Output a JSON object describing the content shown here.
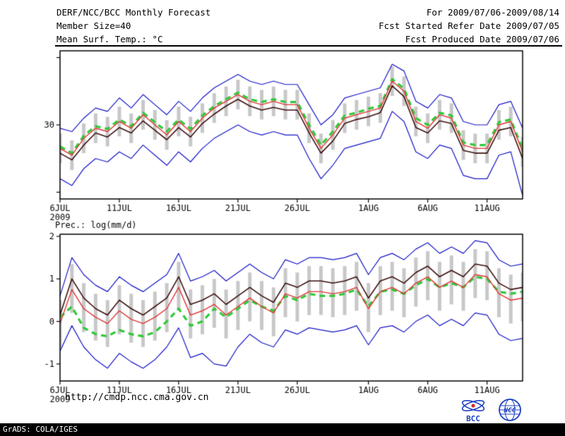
{
  "header": {
    "left_lines": [
      "DERF/NCC/BCC Monthly Forecast",
      "Member Size=40",
      "Mean Surf. Temp.: °C"
    ],
    "right_lines": [
      "For 2009/07/06-2009/08/14",
      "Fcst Started Refer Date 2009/07/05",
      "Fcst Produced Date 2009/07/06"
    ]
  },
  "footer": {
    "credit": "GrADS: COLA/IGES",
    "url": "http://cmdp.ncc.cma.gov.cn"
  },
  "logos": {
    "bcc_label": "BCC",
    "ncc_label": "NCC"
  },
  "colors": {
    "envelope": "#1414c8",
    "ensemble_mean": "#e03232",
    "control": "#3c0f0f",
    "observation": "#30c838",
    "spread_bar": "#c8c8c8",
    "axis": "#000000"
  },
  "chart_data": [
    {
      "type": "line",
      "panel": "surface-temperature",
      "panel_label": "",
      "ylabel": "Mean Surf. Temp.: °C",
      "ylim": [
        19,
        41
      ],
      "yticks": [
        {
          "value": 20,
          "label": ""
        },
        {
          "value": 30,
          "label": "30"
        },
        {
          "value": 40,
          "label": ""
        }
      ],
      "x_count": 40,
      "x_ticks": [
        {
          "index": 0,
          "label": "6JUL",
          "sublabel": "2009"
        },
        {
          "index": 5,
          "label": "11JUL"
        },
        {
          "index": 10,
          "label": "16JUL"
        },
        {
          "index": 15,
          "label": "21JUL"
        },
        {
          "index": 20,
          "label": "26JUL"
        },
        {
          "index": 26,
          "label": "1AUG"
        },
        {
          "index": 31,
          "label": "6AUG"
        },
        {
          "index": 36,
          "label": "11AUG"
        }
      ],
      "bars": {
        "name": "member-spread",
        "color": "#c8c8c8",
        "top": [
          28.7,
          27.7,
          30.2,
          31.7,
          31.2,
          32.7,
          31.7,
          33.7,
          32.2,
          30.7,
          32.7,
          31.2,
          33.2,
          34.7,
          35.7,
          36.7,
          35.7,
          35.2,
          35.7,
          35.2,
          35.2,
          31.7,
          28.7,
          30.7,
          33.2,
          33.7,
          34.2,
          34.7,
          38.7,
          37.2,
          32.7,
          31.7,
          33.7,
          33.2,
          29.2,
          28.7,
          28.7,
          32.2,
          32.7,
          28.2
        ],
        "bottom": [
          24.3,
          23.3,
          25.8,
          27.3,
          26.8,
          28.3,
          27.3,
          29.3,
          27.8,
          26.3,
          28.3,
          26.8,
          28.8,
          30.3,
          31.3,
          32.3,
          31.3,
          30.8,
          31.3,
          30.8,
          30.8,
          27.3,
          24.3,
          26.3,
          28.8,
          29.3,
          29.8,
          30.3,
          34.3,
          32.8,
          28.3,
          27.3,
          29.3,
          28.8,
          24.8,
          24.3,
          24.3,
          27.8,
          28.3,
          23.8
        ]
      },
      "series": [
        {
          "name": "observation",
          "color": "#30c838",
          "width": 3.2,
          "dash": true,
          "values": [
            26.8,
            25.8,
            28.4,
            29.8,
            29.4,
            30.8,
            29.8,
            31.8,
            30.4,
            29,
            30.8,
            29.4,
            31.4,
            32.8,
            33.8,
            34.8,
            33.8,
            33.4,
            33.8,
            33.4,
            33.4,
            30,
            27,
            29,
            31.4,
            31.8,
            32.4,
            32.8,
            36.8,
            35.4,
            31,
            30,
            31.8,
            31.4,
            27.4,
            27,
            27,
            30.4,
            30.8,
            26.4
          ]
        },
        {
          "name": "upper-envelope",
          "color": "#1414c8",
          "width": 1.2,
          "dash": false,
          "values": [
            29.5,
            29,
            31,
            32.5,
            32,
            34,
            32.5,
            34.5,
            33,
            31.5,
            33.5,
            32,
            34,
            35.5,
            36.5,
            37.5,
            36.5,
            36,
            36.5,
            36,
            36,
            33,
            30,
            31.5,
            34,
            34.5,
            35,
            35.5,
            39,
            38,
            33.5,
            32.5,
            34.5,
            34,
            30.5,
            30,
            30,
            33,
            33.5,
            29.5
          ]
        },
        {
          "name": "lower-envelope",
          "color": "#1414c8",
          "width": 1.2,
          "dash": false,
          "values": [
            22,
            21,
            23.5,
            25,
            24.5,
            26,
            25,
            27,
            25.5,
            24,
            26,
            24.5,
            26.5,
            28,
            29,
            30,
            29,
            28.5,
            29,
            28.5,
            28.5,
            25,
            22,
            24,
            26.5,
            27,
            27.5,
            28,
            32,
            30.5,
            26,
            25,
            27,
            26.5,
            22.5,
            22,
            22,
            25.5,
            26,
            19.5
          ]
        },
        {
          "name": "ensemble-mean",
          "color": "#e03232",
          "width": 1.4,
          "dash": false,
          "values": [
            26.5,
            25.5,
            28,
            29.5,
            29,
            30.5,
            29.5,
            31.5,
            30,
            28.5,
            30.5,
            29,
            31,
            32.5,
            33.5,
            34.5,
            33.5,
            33,
            33.5,
            33,
            33,
            29.5,
            26.5,
            28.5,
            31,
            31.5,
            32,
            32.5,
            36.5,
            35,
            30.5,
            29.5,
            31.5,
            31,
            27,
            26.5,
            26.5,
            30,
            30.5,
            26
          ]
        },
        {
          "name": "control-run",
          "color": "#3c0f0f",
          "width": 1.6,
          "dash": false,
          "values": [
            25.8,
            24.8,
            27,
            28.8,
            28.2,
            29.6,
            28.8,
            30.6,
            29.2,
            27.8,
            29.6,
            28.2,
            30.2,
            31.6,
            32.8,
            33.8,
            32.8,
            32.2,
            32.6,
            32.2,
            32.2,
            28.8,
            25.8,
            27.6,
            30.2,
            30.8,
            31.2,
            31.8,
            35.8,
            34.2,
            29.6,
            28.8,
            30.6,
            30.2,
            26.2,
            25.8,
            25.8,
            29.2,
            29.6,
            25
          ]
        }
      ]
    },
    {
      "type": "line",
      "panel": "precipitation",
      "panel_label": "Prec.: log(mm/d)",
      "ylabel": "Prec.: log(mm/d)",
      "ylim": [
        -1.4,
        2.05
      ],
      "yticks": [
        {
          "value": 2,
          "label": "2"
        },
        {
          "value": 1,
          "label": "1"
        },
        {
          "value": 0,
          "label": "0"
        },
        {
          "value": -1,
          "label": "-1"
        }
      ],
      "x_count": 40,
      "x_ticks": [
        {
          "index": 0,
          "label": "6JUL",
          "sublabel": "2009"
        },
        {
          "index": 5,
          "label": "11JUL"
        },
        {
          "index": 10,
          "label": "16JUL"
        },
        {
          "index": 15,
          "label": "21JUL"
        },
        {
          "index": 20,
          "label": "26JUL"
        },
        {
          "index": 26,
          "label": "1AUG"
        },
        {
          "index": 31,
          "label": "6AUG"
        },
        {
          "index": 36,
          "label": "11AUG"
        }
      ],
      "bars": {
        "name": "member-spread",
        "color": "#c8c8c8",
        "top": [
          0.5,
          1.35,
          0.9,
          0.65,
          0.5,
          0.85,
          0.65,
          0.5,
          0.7,
          0.9,
          1.4,
          0.75,
          0.85,
          1.0,
          0.75,
          0.95,
          1.15,
          0.95,
          0.8,
          1.25,
          1.15,
          1.3,
          1.3,
          1.25,
          1.3,
          1.4,
          0.9,
          1.3,
          1.4,
          1.25,
          1.5,
          1.65,
          1.4,
          1.55,
          1.4,
          1.7,
          1.65,
          1.25,
          1.1,
          1.15
        ],
        "bottom": [
          -0.6,
          0.2,
          -0.25,
          -0.45,
          -0.6,
          -0.3,
          -0.5,
          -0.6,
          -0.45,
          -0.25,
          0.25,
          -0.4,
          -0.3,
          -0.15,
          -0.4,
          -0.2,
          0,
          -0.2,
          -0.35,
          0.1,
          0,
          0.15,
          0.15,
          0.1,
          0.15,
          0.25,
          -0.25,
          0.15,
          0.25,
          0.1,
          0.35,
          0.5,
          0.25,
          0.4,
          0.25,
          0.55,
          0.5,
          0.1,
          -0.05,
          0
        ]
      },
      "series": [
        {
          "name": "observation",
          "color": "#30c838",
          "width": 3.2,
          "dash": true,
          "values": [
            0.1,
            0.35,
            -0.15,
            -0.3,
            -0.35,
            -0.2,
            -0.3,
            -0.35,
            -0.25,
            0,
            0.3,
            -0.1,
            0,
            0.3,
            0.1,
            0.3,
            0.5,
            0.35,
            0.25,
            0.6,
            0.5,
            0.65,
            0.6,
            0.6,
            0.65,
            0.75,
            0.35,
            0.7,
            0.75,
            0.65,
            0.85,
            1,
            0.8,
            0.9,
            0.8,
            1.05,
            1,
            0.7,
            0.65,
            0.7
          ]
        },
        {
          "name": "upper-envelope",
          "color": "#1414c8",
          "width": 1.2,
          "dash": false,
          "values": [
            0.6,
            1.5,
            1.1,
            0.85,
            0.7,
            1.05,
            0.85,
            0.7,
            0.9,
            1.1,
            1.6,
            0.95,
            1.05,
            1.2,
            0.95,
            1.15,
            1.35,
            1.15,
            1.0,
            1.45,
            1.35,
            1.5,
            1.5,
            1.45,
            1.5,
            1.6,
            1.1,
            1.5,
            1.6,
            1.45,
            1.7,
            1.85,
            1.6,
            1.75,
            1.6,
            1.9,
            1.85,
            1.45,
            1.3,
            1.35
          ]
        },
        {
          "name": "lower-envelope",
          "color": "#1414c8",
          "width": 1.2,
          "dash": false,
          "values": [
            -0.7,
            -0.1,
            -0.6,
            -0.9,
            -1.1,
            -0.75,
            -0.95,
            -1.1,
            -0.9,
            -0.6,
            -0.15,
            -0.85,
            -0.75,
            -1.0,
            -1.05,
            -0.6,
            -0.3,
            -0.5,
            -0.6,
            -0.2,
            -0.3,
            -0.15,
            -0.2,
            -0.25,
            -0.2,
            -0.1,
            -0.55,
            -0.15,
            -0.1,
            -0.25,
            0,
            0.15,
            -0.1,
            0.05,
            -0.1,
            0.2,
            0.15,
            -0.3,
            -0.45,
            -0.4
          ]
        },
        {
          "name": "ensemble-mean",
          "color": "#e03232",
          "width": 1.4,
          "dash": false,
          "values": [
            -0.05,
            0.75,
            0.3,
            0.1,
            -0.05,
            0.25,
            0.05,
            -0.05,
            0.1,
            0.3,
            0.8,
            0.15,
            0.25,
            0.4,
            0.15,
            0.35,
            0.55,
            0.35,
            0.2,
            0.65,
            0.55,
            0.7,
            0.7,
            0.65,
            0.7,
            0.8,
            0.3,
            0.7,
            0.8,
            0.65,
            0.9,
            1.05,
            0.8,
            0.95,
            0.8,
            1.1,
            1.05,
            0.65,
            0.5,
            0.55
          ]
        },
        {
          "name": "control-run",
          "color": "#3c0f0f",
          "width": 1.6,
          "dash": false,
          "values": [
            0.15,
            1.0,
            0.55,
            0.3,
            0.15,
            0.5,
            0.3,
            0.15,
            0.35,
            0.55,
            1.05,
            0.4,
            0.5,
            0.65,
            0.4,
            0.6,
            0.8,
            0.6,
            0.45,
            0.9,
            0.8,
            0.95,
            0.95,
            0.9,
            0.95,
            1.05,
            0.55,
            0.95,
            1.05,
            0.9,
            1.15,
            1.3,
            1.05,
            1.2,
            1.05,
            1.35,
            1.3,
            0.9,
            0.75,
            0.8
          ]
        }
      ]
    }
  ]
}
